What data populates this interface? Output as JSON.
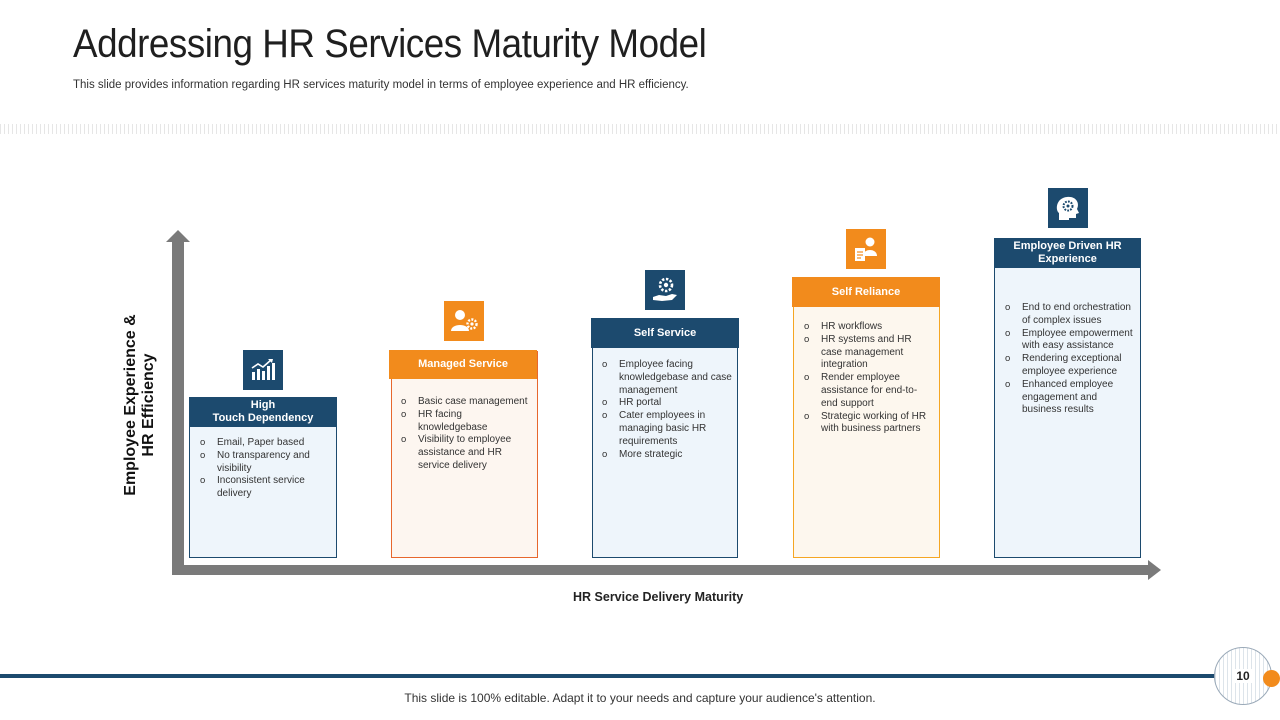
{
  "slide": {
    "title": "Addressing HR Services Maturity Model",
    "subtitle": "This slide provides information regarding HR services maturity model in terms of employee experience and HR efficiency."
  },
  "axes": {
    "y_label_line1": "Employee Experience &",
    "y_label_line2": "HR Efficiency",
    "x_label": "HR Service Delivery Maturity"
  },
  "stages": [
    {
      "title": "High\nTouch Dependency",
      "icon": "bar-chart-icon",
      "points": [
        "Email,  Paper based",
        "No transparency and visibility",
        "Inconsistent service delivery"
      ]
    },
    {
      "title": "Managed Service",
      "icon": "user-gear-icon",
      "points": [
        "Basic case management",
        "HR facing knowledgebase",
        "Visibility to employee assistance and HR service delivery"
      ]
    },
    {
      "title": "Self Service",
      "icon": "hand-gear-icon",
      "points": [
        "Employee  facing knowledgebase and case management",
        "HR portal",
        "Cater employees in managing basic HR requirements",
        "More strategic"
      ]
    },
    {
      "title": "Self Reliance",
      "icon": "user-document-icon",
      "points": [
        "HR workflows",
        "HR systems and HR case management integration",
        "Render employee assistance for end-to-end support",
        "Strategic working of HR with business partners"
      ]
    },
    {
      "title": "Employee Driven HR Experience",
      "icon": "head-idea-icon",
      "points": [
        "End to end orchestration of complex issues",
        "Employee empowerment with easy assistance",
        "Rendering exceptional employee experience",
        "Enhanced employee engagement and business results"
      ]
    }
  ],
  "footer": {
    "text": "This slide is 100% editable. Adapt it to your needs and capture your audience's attention.",
    "page_number": "10"
  },
  "colors": {
    "navy": "#1c4a6e",
    "orange": "#f28b1c",
    "axis_gray": "#7a7a7a"
  }
}
